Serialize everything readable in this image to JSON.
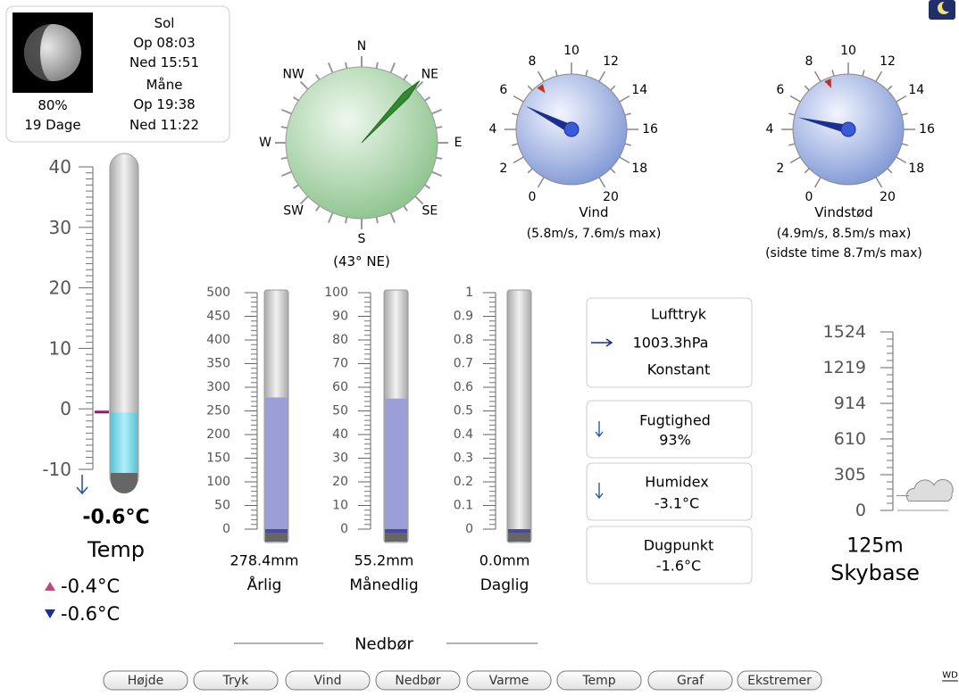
{
  "moon_box": {
    "illumination": "80%",
    "age": "19 Dage",
    "sun_heading": "Sol",
    "sunrise": "Op 08:03",
    "sunset": "Ned 15:51",
    "moon_heading": "Måne",
    "moonrise": "Op 19:38",
    "moonset": "Ned 11:22"
  },
  "temperature": {
    "ticks": [
      40,
      30,
      20,
      10,
      0,
      -10
    ],
    "value": -0.6,
    "value_label": "-0.6°C",
    "label": "Temp",
    "high": -0.4,
    "high_label": "-0.4°C",
    "low": -0.6,
    "low_label": "-0.6°C"
  },
  "compass": {
    "points": [
      "N",
      "NE",
      "E",
      "SE",
      "S",
      "SW",
      "W",
      "NW"
    ],
    "direction": 43,
    "direction_label": "(43° NE)"
  },
  "wind": {
    "ticks": [
      0,
      2,
      4,
      6,
      8,
      10,
      12,
      14,
      16,
      18,
      20
    ],
    "label": "Vind",
    "value": 5.8,
    "max": 7.6,
    "readout": "(5.8m/s, 7.6m/s max)"
  },
  "gust": {
    "ticks": [
      0,
      2,
      4,
      6,
      8,
      10,
      12,
      14,
      16,
      18,
      20
    ],
    "label": "Vindstød",
    "value": 4.9,
    "max": 8.5,
    "readout": "(4.9m/s, 8.5m/s max)",
    "hour_max_note": "(sidste time 8.7m/s max)"
  },
  "precipitation": {
    "title": "Nedbør",
    "gauges": [
      {
        "name": "Årlig",
        "ticks": [
          0,
          50,
          100,
          150,
          200,
          250,
          300,
          350,
          400,
          450,
          500
        ],
        "value": 278.4,
        "value_label": "278.4mm"
      },
      {
        "name": "Månedlig",
        "ticks": [
          0,
          10,
          20,
          30,
          40,
          50,
          60,
          70,
          80,
          90,
          100
        ],
        "value": 55.2,
        "value_label": "55.2mm"
      },
      {
        "name": "Daglig",
        "ticks": [
          0,
          0.1,
          0.2,
          0.3,
          0.4,
          0.5,
          0.6,
          0.7,
          0.8,
          0.9,
          1
        ],
        "value": 0,
        "value_label": "0.0mm"
      }
    ]
  },
  "readings": [
    {
      "label": "Lufttryk",
      "value": "1003.3hPa",
      "trend": "Konstant"
    },
    {
      "label": "Fugtighed",
      "value": "93%"
    },
    {
      "label": "Humidex",
      "value": "-3.1°C"
    },
    {
      "label": "Dugpunkt",
      "value": "-1.6°C"
    }
  ],
  "cloud_base": {
    "ticks": [
      0,
      305,
      610,
      914,
      1219,
      1524
    ],
    "value": 125,
    "value_label": "125m",
    "label": "Skybase"
  },
  "nav": {
    "buttons": [
      "Højde",
      "Tryk",
      "Vind",
      "Nedbør",
      "Varme",
      "Temp",
      "Graf",
      "Ekstremer"
    ],
    "footer_link": "WD"
  }
}
